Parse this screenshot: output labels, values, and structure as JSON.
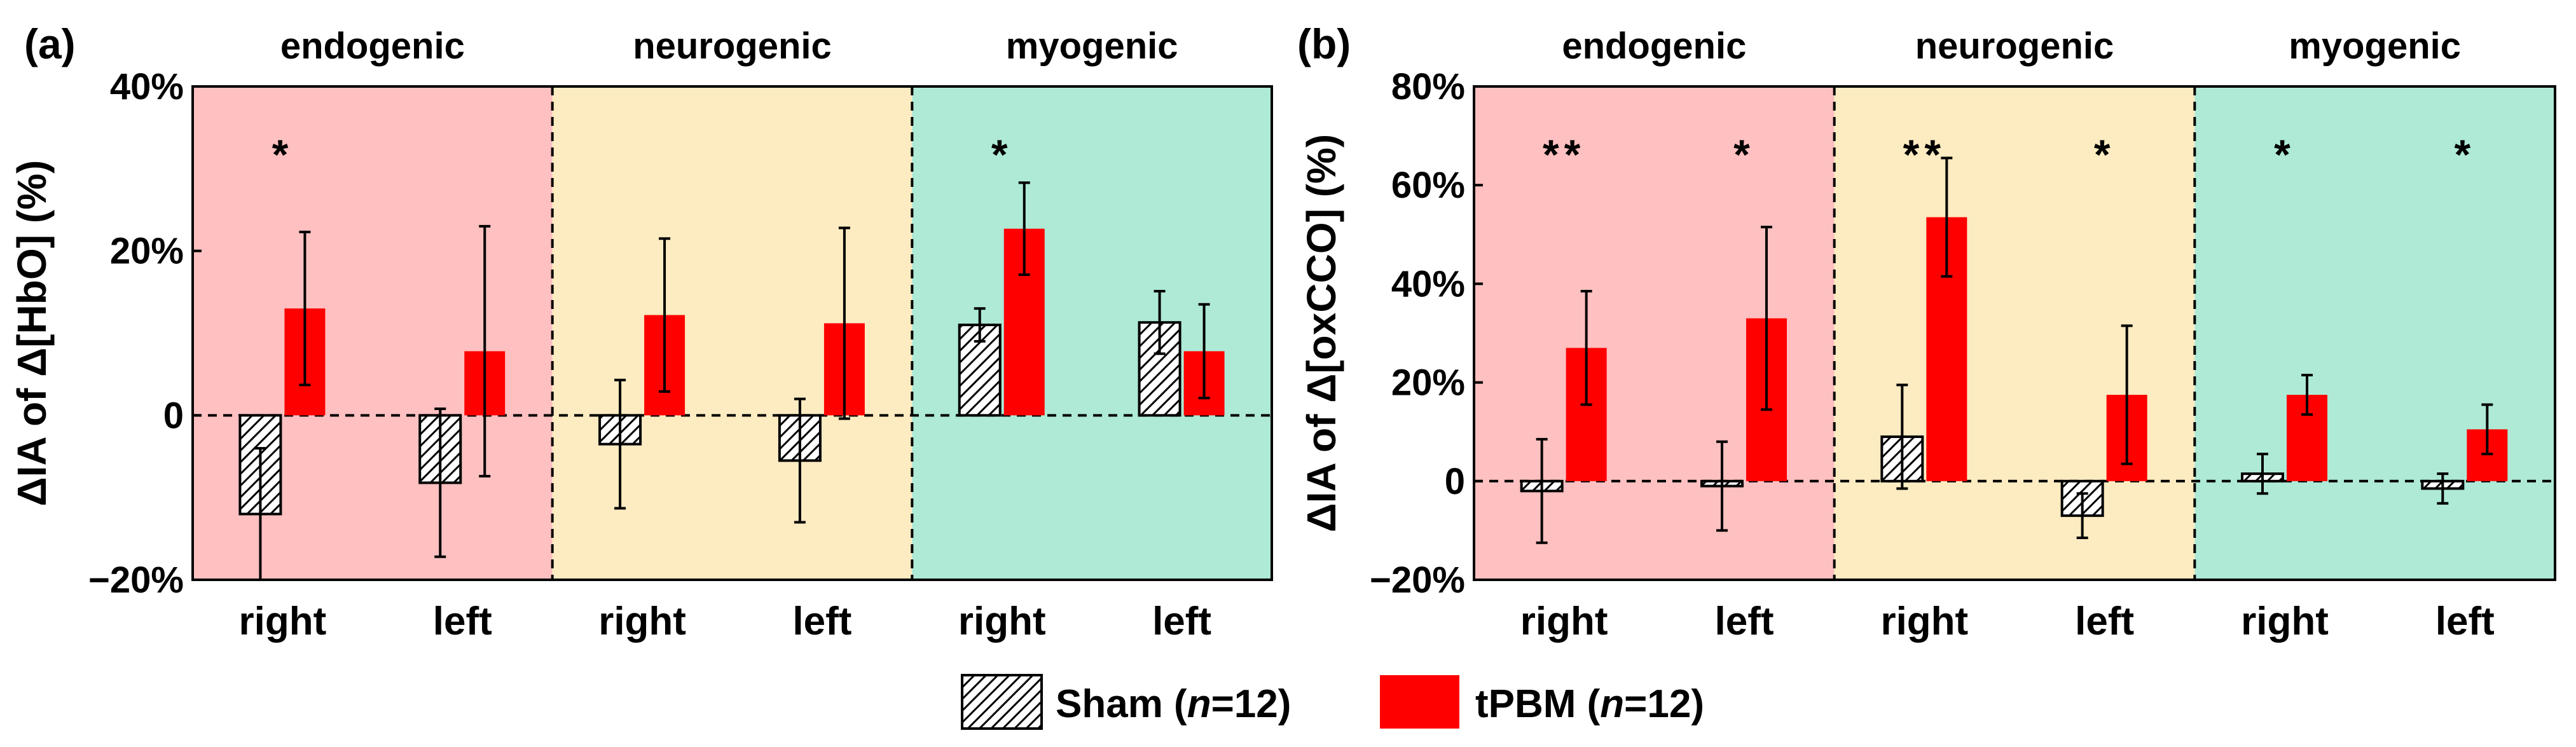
{
  "colors": {
    "endogenic": "#fec0c0",
    "neurogenic": "#fdebc1",
    "myogenic": "#aeead6",
    "tpbm": "#ff0000",
    "sham": "#ffffff"
  },
  "legend": {
    "sham_label": "Sham (",
    "sham_n": "n",
    "sham_rest": "=12)",
    "tpbm_label": "tPBM (",
    "tpbm_n": "n",
    "tpbm_rest": "=12)"
  },
  "chart_data": [
    {
      "type": "bar",
      "panel": "(a)",
      "ylabel": "ΔIA of Δ[HbO] (%)",
      "ylim": [
        -20,
        40
      ],
      "yticks": [
        -20,
        0,
        20,
        40
      ],
      "ytick_labels": [
        "−20%",
        "0",
        "20%",
        "40%"
      ],
      "bands": [
        "endogenic",
        "neurogenic",
        "myogenic"
      ],
      "categories": [
        "right",
        "left",
        "right",
        "left",
        "right",
        "left"
      ],
      "series": [
        {
          "name": "Sham",
          "values": [
            -12,
            -8.2,
            -3.5,
            -5.5,
            11,
            11.3
          ],
          "errors": [
            8,
            9,
            7.8,
            7.5,
            2,
            3.8
          ]
        },
        {
          "name": "tPBM",
          "values": [
            13,
            7.8,
            12.2,
            11.2,
            22.7,
            7.8
          ],
          "errors": [
            9.3,
            15.2,
            9.3,
            11.6,
            5.6,
            5.7
          ]
        }
      ],
      "annotations": [
        "*",
        "",
        "",
        "",
        "*",
        ""
      ]
    },
    {
      "type": "bar",
      "panel": "(b)",
      "ylabel": "ΔIA of Δ[oxCCO] (%)",
      "ylim": [
        -20,
        80
      ],
      "yticks": [
        -20,
        0,
        20,
        40,
        60,
        80
      ],
      "ytick_labels": [
        "−20%",
        "0",
        "20%",
        "40%",
        "60%",
        "80%"
      ],
      "bands": [
        "endogenic",
        "neurogenic",
        "myogenic"
      ],
      "categories": [
        "right",
        "left",
        "right",
        "left",
        "right",
        "left"
      ],
      "series": [
        {
          "name": "Sham",
          "values": [
            -2,
            -1,
            9,
            -7,
            1.5,
            -1.5
          ],
          "errors": [
            10.5,
            9,
            10.5,
            4.5,
            4,
            3
          ]
        },
        {
          "name": "tPBM",
          "values": [
            27,
            33,
            53.5,
            17.5,
            17.5,
            10.5
          ],
          "errors": [
            11.5,
            18.5,
            12,
            14,
            4,
            5
          ]
        }
      ],
      "annotations": [
        "**",
        "*",
        "**",
        "*",
        "*",
        "*"
      ]
    }
  ]
}
